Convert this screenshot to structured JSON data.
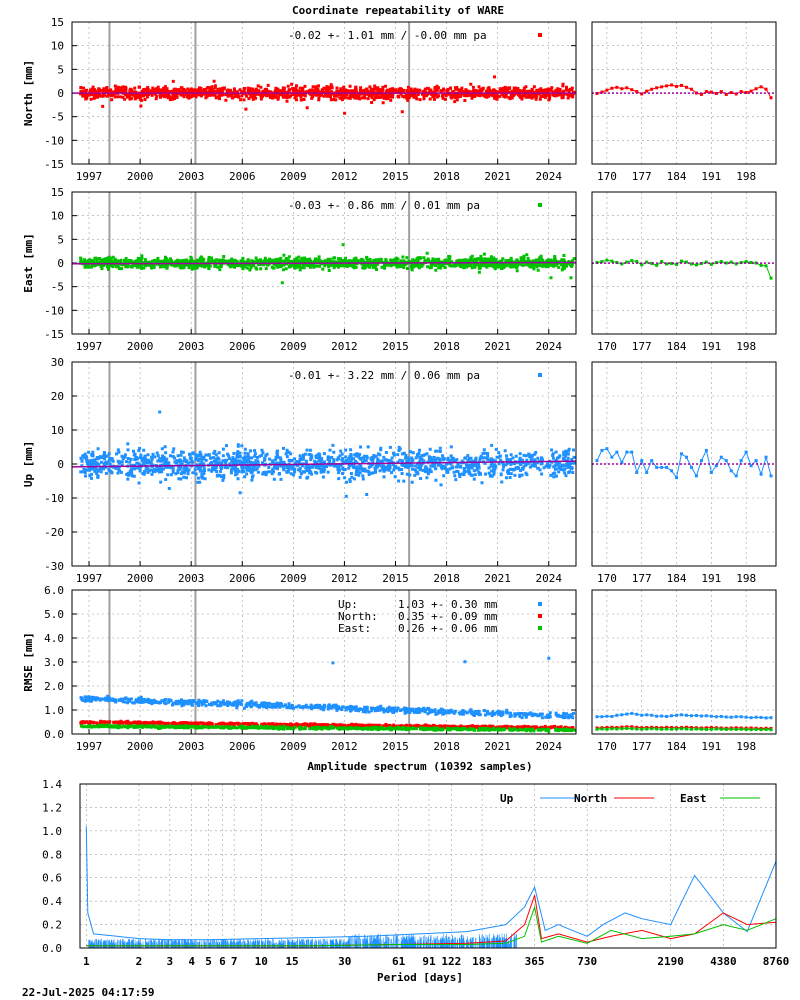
{
  "title": "Coordinate repeatability of WARE",
  "timestamp": "22-Jul-2025 04:17:59",
  "colors": {
    "north": "#ff0000",
    "east": "#00c000",
    "up": "#1e90ff",
    "trend": "#a000a0",
    "grid": "#a0a0a0"
  },
  "time_axis": {
    "range": [
      1996.0,
      2025.6
    ],
    "ticks": [
      "1997",
      "2000",
      "2003",
      "2006",
      "2009",
      "2012",
      "2015",
      "2018",
      "2021",
      "2024"
    ],
    "events": [
      1998.2,
      2003.25,
      2015.8
    ]
  },
  "recent_axis": {
    "range": [
      167,
      204
    ],
    "ticks": [
      "170",
      "177",
      "184",
      "191",
      "198"
    ]
  },
  "chart_data": [
    {
      "type": "scatter",
      "id": "north",
      "ylabel": "North [mm]",
      "ylim": [
        -15,
        15
      ],
      "yticks": [
        "15",
        "10",
        "5",
        "0",
        "-5",
        "-10",
        "-15"
      ],
      "annotation": "-0.02 +- 1.01 mm / -0.00 mm pa",
      "legend_symbol_color": "#ff0000",
      "mean": -0.02,
      "std": 1.01,
      "trend_mm_pa": 0.0,
      "recent_days": [
        168,
        169,
        170,
        171,
        172,
        173,
        174,
        175,
        176,
        177,
        178,
        179,
        180,
        181,
        182,
        183,
        184,
        185,
        186,
        187,
        188,
        189,
        190,
        191,
        192,
        193,
        194,
        195,
        196,
        197,
        198,
        199,
        200,
        201,
        202,
        203
      ],
      "recent_values": [
        -0.1,
        0.2,
        0.6,
        1.0,
        1.2,
        0.9,
        1.1,
        0.7,
        0.3,
        -0.2,
        0.4,
        0.8,
        1.1,
        1.3,
        1.5,
        1.7,
        1.4,
        1.6,
        1.2,
        0.8,
        0.0,
        -0.3,
        0.3,
        0.2,
        -0.1,
        0.3,
        -0.3,
        0.1,
        -0.2,
        0.3,
        0.1,
        0.4,
        0.9,
        1.3,
        0.8,
        -1.0
      ]
    },
    {
      "type": "scatter",
      "id": "east",
      "ylabel": "East [mm]",
      "ylim": [
        -15,
        15
      ],
      "yticks": [
        "15",
        "10",
        "5",
        "0",
        "-5",
        "-10",
        "-15"
      ],
      "annotation": "-0.03 +- 0.86 mm /  0.01 mm pa",
      "legend_symbol_color": "#00c000",
      "mean": -0.03,
      "std": 0.86,
      "trend_mm_pa": 0.01,
      "recent_days": [
        168,
        169,
        170,
        171,
        172,
        173,
        174,
        175,
        176,
        177,
        178,
        179,
        180,
        181,
        182,
        183,
        184,
        185,
        186,
        187,
        188,
        189,
        190,
        191,
        192,
        193,
        194,
        195,
        196,
        197,
        198,
        199,
        200,
        201,
        202,
        203
      ],
      "recent_values": [
        0.1,
        0.3,
        0.6,
        0.4,
        0.1,
        -0.2,
        0.2,
        0.5,
        0.3,
        -0.4,
        0.2,
        -0.1,
        -0.5,
        0.3,
        -0.2,
        -0.1,
        -0.3,
        0.4,
        0.2,
        -0.2,
        -0.4,
        -0.1,
        0.2,
        -0.3,
        0.1,
        0.3,
        0.0,
        0.2,
        -0.2,
        0.1,
        0.3,
        0.1,
        0.0,
        -0.5,
        -0.6,
        -3.2
      ]
    },
    {
      "type": "scatter",
      "id": "up",
      "ylabel": "Up [mm]",
      "ylim": [
        -30,
        30
      ],
      "yticks": [
        "30",
        "20",
        "10",
        "0",
        "-10",
        "-20",
        "-30"
      ],
      "annotation": "-0.01 +- 3.22 mm /  0.06 mm pa",
      "legend_symbol_color": "#1e90ff",
      "mean": -0.01,
      "std": 3.22,
      "trend_mm_pa": 0.06,
      "recent_days": [
        168,
        169,
        170,
        171,
        172,
        173,
        174,
        175,
        176,
        177,
        178,
        179,
        180,
        181,
        182,
        183,
        184,
        185,
        186,
        187,
        188,
        189,
        190,
        191,
        192,
        193,
        194,
        195,
        196,
        197,
        198,
        199,
        200,
        201,
        202,
        203
      ],
      "recent_values": [
        1.0,
        4.0,
        4.5,
        2.0,
        3.5,
        0.5,
        3.5,
        3.5,
        -2.5,
        1.0,
        -2.5,
        1.0,
        -1.0,
        -1.0,
        -1.0,
        -2.0,
        -4.0,
        3.0,
        2.0,
        -1.0,
        -3.5,
        1.0,
        4.0,
        -2.5,
        -0.5,
        2.0,
        1.0,
        -2.0,
        -3.5,
        1.0,
        3.5,
        -0.5,
        1.0,
        -3.0,
        2.0,
        -3.5
      ]
    },
    {
      "type": "scatter",
      "id": "rmse",
      "ylabel": "RMSE [mm]",
      "ylim": [
        0,
        6
      ],
      "yticks": [
        "6.0",
        "5.0",
        "4.0",
        "3.0",
        "2.0",
        "1.0",
        "0.0"
      ],
      "legend": [
        {
          "label": "Up:",
          "stat": "1.03 +- 0.30 mm",
          "color": "#1e90ff"
        },
        {
          "label": "North:",
          "stat": "0.35 +- 0.09 mm",
          "color": "#ff0000"
        },
        {
          "label": "East:",
          "stat": "0.26 +- 0.06 mm",
          "color": "#00c000"
        }
      ],
      "recent_up": [
        0.72,
        0.72,
        0.74,
        0.73,
        0.78,
        0.8,
        0.83,
        0.86,
        0.82,
        0.78,
        0.8,
        0.78,
        0.74,
        0.75,
        0.73,
        0.76,
        0.78,
        0.8,
        0.78,
        0.76,
        0.77,
        0.75,
        0.76,
        0.74,
        0.72,
        0.73,
        0.71,
        0.7,
        0.72,
        0.72,
        0.7,
        0.68,
        0.7,
        0.69,
        0.67,
        0.68
      ],
      "recent_north": [
        0.25,
        0.26,
        0.27,
        0.28,
        0.27,
        0.29,
        0.3,
        0.3,
        0.28,
        0.26,
        0.27,
        0.28,
        0.27,
        0.26,
        0.28,
        0.27,
        0.26,
        0.27,
        0.28,
        0.27,
        0.26,
        0.25,
        0.26,
        0.27,
        0.26,
        0.25,
        0.24,
        0.25,
        0.26,
        0.25,
        0.24,
        0.25,
        0.24,
        0.23,
        0.24,
        0.23
      ],
      "recent_east": [
        0.2,
        0.21,
        0.2,
        0.22,
        0.21,
        0.22,
        0.23,
        0.22,
        0.21,
        0.2,
        0.21,
        0.22,
        0.21,
        0.2,
        0.21,
        0.2,
        0.21,
        0.22,
        0.21,
        0.2,
        0.21,
        0.2,
        0.19,
        0.2,
        0.21,
        0.2,
        0.19,
        0.2,
        0.19,
        0.2,
        0.19,
        0.18,
        0.19,
        0.18,
        0.19,
        0.18
      ]
    },
    {
      "type": "line",
      "id": "spectrum",
      "title": "Amplitude spectrum (10392 samples)",
      "xlabel": "Period [days]",
      "xscale": "log",
      "xlim": [
        0.92,
        8760
      ],
      "ylim": [
        0,
        1.4
      ],
      "yticks": [
        "1.4",
        "1.2",
        "1.0",
        "0.8",
        "0.6",
        "0.4",
        "0.2",
        "0.0"
      ],
      "xticks": [
        "1",
        "2",
        "3",
        "4",
        "5",
        "6",
        "7",
        "10",
        "15",
        "30",
        "61",
        "91",
        "122",
        "183",
        "365",
        "730",
        "2190",
        "4380",
        "8760"
      ],
      "xtick_values": [
        1,
        2,
        3,
        4,
        5,
        6,
        7,
        10,
        15,
        30,
        61,
        91,
        122,
        183,
        365,
        730,
        2190,
        4380,
        8760
      ],
      "series": [
        {
          "name": "Up",
          "color": "#1e90ff",
          "x": [
            1,
            1.02,
            1.1,
            1.5,
            2,
            3,
            5,
            10,
            20,
            40,
            80,
            150,
            250,
            320,
            365,
            420,
            500,
            600,
            730,
            900,
            1200,
            1500,
            2190,
            3000,
            4380,
            6000,
            8760
          ],
          "y": [
            1.04,
            0.3,
            0.12,
            0.1,
            0.08,
            0.07,
            0.07,
            0.08,
            0.09,
            0.1,
            0.12,
            0.14,
            0.2,
            0.35,
            0.52,
            0.15,
            0.2,
            0.15,
            0.1,
            0.2,
            0.3,
            0.25,
            0.2,
            0.62,
            0.3,
            0.14,
            0.74
          ]
        },
        {
          "name": "North",
          "color": "#ff0000",
          "x": [
            1,
            5,
            20,
            60,
            150,
            250,
            320,
            365,
            400,
            500,
            730,
            1000,
            1500,
            2190,
            3000,
            4380,
            6000,
            8760
          ],
          "y": [
            0.02,
            0.02,
            0.02,
            0.03,
            0.04,
            0.06,
            0.2,
            0.45,
            0.08,
            0.12,
            0.05,
            0.1,
            0.15,
            0.08,
            0.12,
            0.3,
            0.2,
            0.22
          ]
        },
        {
          "name": "East",
          "color": "#00c000",
          "x": [
            1,
            5,
            20,
            60,
            150,
            250,
            320,
            365,
            400,
            500,
            730,
            1000,
            1500,
            2190,
            3000,
            4380,
            6000,
            8760
          ],
          "y": [
            0.02,
            0.02,
            0.02,
            0.03,
            0.03,
            0.04,
            0.1,
            0.35,
            0.05,
            0.1,
            0.04,
            0.15,
            0.08,
            0.1,
            0.12,
            0.2,
            0.15,
            0.25
          ]
        }
      ]
    }
  ]
}
